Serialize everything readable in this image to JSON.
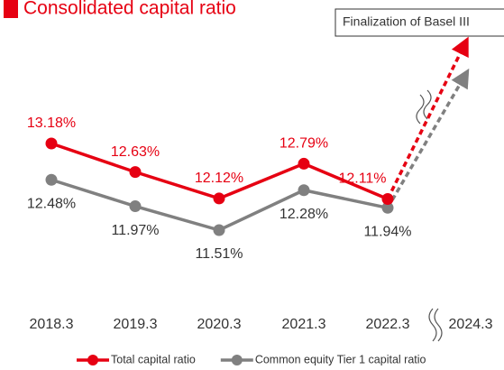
{
  "chart_data": {
    "type": "line",
    "title": "Consolidated capital ratio",
    "annotation": "Finalization of Basel III",
    "categories": [
      "2018.3",
      "2019.3",
      "2020.3",
      "2021.3",
      "2022.3",
      "2024.3"
    ],
    "series": [
      {
        "name": "Total capital ratio",
        "color": "#e60012",
        "values": [
          13.18,
          12.63,
          12.12,
          12.79,
          12.11,
          null
        ],
        "value_labels": [
          "13.18%",
          "12.63%",
          "12.12%",
          "12.79%",
          "12.11%",
          null
        ]
      },
      {
        "name": "Common equity Tier 1 capital ratio",
        "color": "#808080",
        "values": [
          12.48,
          11.97,
          11.51,
          12.28,
          11.94,
          null
        ],
        "value_labels": [
          "12.48%",
          "11.97%",
          "11.51%",
          "12.28%",
          "11.94%",
          null
        ]
      }
    ]
  }
}
